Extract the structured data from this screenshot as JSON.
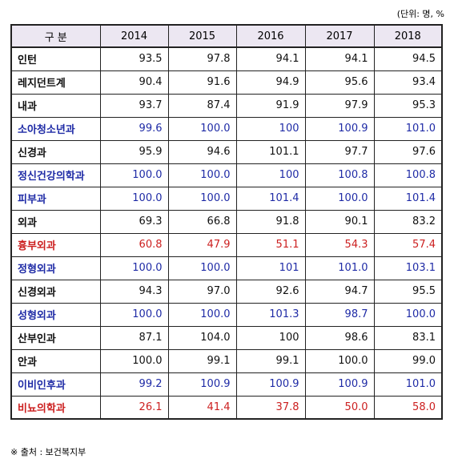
{
  "unit_note": "(단위: 명, %",
  "table": {
    "header": {
      "label": "구 분",
      "years": [
        "2014",
        "2015",
        "2016",
        "2017",
        "2018"
      ]
    },
    "rows": [
      {
        "name": "인턴",
        "color": "black",
        "values": [
          "93.5",
          "97.8",
          "94.1",
          "94.1",
          "94.5"
        ]
      },
      {
        "name": "레지던트계",
        "color": "black",
        "values": [
          "90.4",
          "91.6",
          "94.9",
          "95.6",
          "93.4"
        ]
      },
      {
        "name": "내과",
        "color": "black",
        "values": [
          "93.7",
          "87.4",
          "91.9",
          "97.9",
          "95.3"
        ]
      },
      {
        "name": "소아청소년과",
        "color": "blue",
        "values": [
          "99.6",
          "100.0",
          "100",
          "100.9",
          "101.0"
        ]
      },
      {
        "name": "신경과",
        "color": "black",
        "values": [
          "95.9",
          "94.6",
          "101.1",
          "97.7",
          "97.6"
        ]
      },
      {
        "name": "정신건강의학과",
        "color": "blue",
        "values": [
          "100.0",
          "100.0",
          "100",
          "100.8",
          "100.8"
        ]
      },
      {
        "name": "피부과",
        "color": "blue",
        "values": [
          "100.0",
          "100.0",
          "101.4",
          "100.0",
          "101.4"
        ]
      },
      {
        "name": "외과",
        "color": "black",
        "values": [
          "69.3",
          "66.8",
          "91.8",
          "90.1",
          "83.2"
        ]
      },
      {
        "name": "흉부외과",
        "color": "red",
        "values": [
          "60.8",
          "47.9",
          "51.1",
          "54.3",
          "57.4"
        ]
      },
      {
        "name": "정형외과",
        "color": "blue",
        "values": [
          "100.0",
          "100.0",
          "101",
          "101.0",
          "103.1"
        ]
      },
      {
        "name": "신경외과",
        "color": "black",
        "values": [
          "94.3",
          "97.0",
          "92.6",
          "94.7",
          "95.5"
        ]
      },
      {
        "name": "성형외과",
        "color": "blue",
        "values": [
          "100.0",
          "100.0",
          "101.3",
          "98.7",
          "100.0"
        ]
      },
      {
        "name": "산부인과",
        "color": "black",
        "values": [
          "87.1",
          "104.0",
          "100",
          "98.6",
          "83.1"
        ]
      },
      {
        "name": "안과",
        "color": "black",
        "values": [
          "100.0",
          "99.1",
          "99.1",
          "100.0",
          "99.0"
        ]
      },
      {
        "name": "이비인후과",
        "color": "blue",
        "values": [
          "99.2",
          "100.9",
          "100.9",
          "100.9",
          "101.0"
        ]
      },
      {
        "name": "비뇨의학과",
        "color": "red",
        "values": [
          "26.1",
          "41.4",
          "37.8",
          "50.0",
          "58.0"
        ]
      }
    ]
  },
  "colors": {
    "black": "#111111",
    "blue": "#1f2ba6",
    "red": "#cc1f1f",
    "header_bg": "#ece7f2"
  },
  "source_note": "※ 출처 : 보건복지부"
}
